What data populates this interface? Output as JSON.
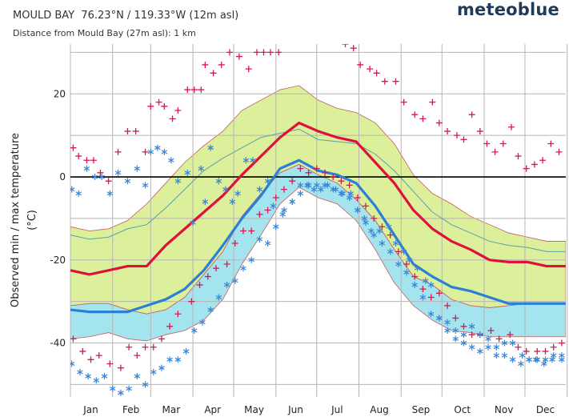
{
  "header": {
    "station": "MOULD BAY",
    "coords": "76.23°N / 119.33°W (12m asl)",
    "distance": "Distance from Mould Bay (27m asl):  1 km",
    "brand": "meteoblue"
  },
  "colors": {
    "max_line": "#e0103c",
    "min_line": "#2a7fd8",
    "max_band": "#dcef9a",
    "min_band": "#a4e4ef",
    "max_marker": "#d81850",
    "min_marker": "#3a86d6",
    "zero_line": "#000000",
    "grid": "#b5b5b5"
  },
  "chart_data": {
    "type": "line",
    "ylabel": "Observed min / max temperature (°C)",
    "ylabel_lines": [
      "Observed min / max temperature",
      "(°C)"
    ],
    "ylim": [
      -53,
      32
    ],
    "yticks": [
      20,
      0,
      -20,
      -40
    ],
    "months": [
      "Jan",
      "Feb",
      "Mar",
      "Apr",
      "May",
      "Jun",
      "Jul",
      "Aug",
      "Sep",
      "Oct",
      "Nov",
      "Dec"
    ],
    "x_days": [
      1,
      15,
      29,
      43,
      57,
      71,
      85,
      99,
      113,
      127,
      141,
      155,
      169,
      183,
      197,
      211,
      225,
      239,
      253,
      267,
      281,
      295,
      309,
      323,
      337,
      351,
      365
    ],
    "grid": true,
    "series": [
      {
        "name": "max",
        "kind": "line",
        "values": [
          -22.5,
          -23.5,
          -22.5,
          -21.5,
          -21.5,
          -16.5,
          -12.5,
          -8.5,
          -4.5,
          0.5,
          5.0,
          9.5,
          13.0,
          11.0,
          9.5,
          8.5,
          3.5,
          -1.5,
          -8.0,
          -12.5,
          -15.5,
          -17.5,
          -20.0,
          -20.5,
          -20.5,
          -21.5,
          -21.5
        ]
      },
      {
        "name": "min",
        "kind": "line",
        "values": [
          -32.0,
          -32.5,
          -32.5,
          -32.5,
          -31.0,
          -29.5,
          -27.0,
          -22.5,
          -16.5,
          -10.0,
          -4.5,
          2.0,
          4.0,
          1.5,
          0.5,
          -1.5,
          -7.0,
          -14.0,
          -21.0,
          -24.0,
          -26.5,
          -27.5,
          -29.0,
          -30.5,
          -30.5,
          -30.5,
          -30.5
        ]
      },
      {
        "name": "max_band",
        "kind": "band",
        "upper": [
          -12.0,
          -13.0,
          -12.5,
          -10.5,
          -6.5,
          -1.5,
          3.5,
          7.5,
          11.0,
          16.0,
          18.5,
          21.0,
          22.0,
          18.5,
          16.5,
          15.5,
          13.0,
          8.0,
          0.5,
          -4.0,
          -6.5,
          -9.5,
          -11.5,
          -13.5,
          -14.5,
          -15.5,
          -15.5
        ],
        "lower": [
          -31.0,
          -30.5,
          -30.5,
          -32.0,
          -33.0,
          -32.0,
          -29.0,
          -23.5,
          -18.0,
          -9.5,
          -4.0,
          1.0,
          3.0,
          0.5,
          -1.5,
          -5.5,
          -10.5,
          -17.5,
          -24.0,
          -26.0,
          -29.5,
          -31.0,
          -31.5,
          -31.0,
          -30.5,
          -30.5,
          -30.5
        ]
      },
      {
        "name": "min_band",
        "kind": "band",
        "upper": [
          -31.0,
          -30.5,
          -30.5,
          -32.0,
          -33.0,
          -32.0,
          -29.0,
          -23.5,
          -18.0,
          -9.5,
          -4.0,
          1.0,
          3.0,
          0.5,
          -1.5,
          -5.5,
          -10.5,
          -17.5,
          -24.0,
          -26.0,
          -29.5,
          -31.0,
          -31.5,
          -31.0,
          -30.5,
          -30.5,
          -30.5
        ],
        "lower": [
          -39.0,
          -38.5,
          -37.5,
          -39.0,
          -39.5,
          -38.0,
          -37.0,
          -34.5,
          -29.5,
          -21.0,
          -14.0,
          -6.5,
          -2.5,
          -5.0,
          -6.5,
          -10.5,
          -17.5,
          -25.5,
          -31.0,
          -34.5,
          -37.0,
          -37.5,
          -38.5,
          -38.5,
          -38.5,
          -38.5,
          -38.5
        ]
      },
      {
        "name": "max_mean",
        "kind": "thin-line",
        "values": [
          -14.0,
          -15.0,
          -14.5,
          -12.5,
          -11.5,
          -7.5,
          -3.0,
          1.5,
          4.5,
          7.0,
          9.5,
          10.5,
          11.5,
          9.0,
          8.5,
          8.0,
          5.5,
          1.5,
          -3.5,
          -8.5,
          -11.5,
          -13.5,
          -15.5,
          -16.5,
          -17.0,
          -18.0,
          -18.0
        ]
      },
      {
        "name": "max_record",
        "kind": "plus",
        "points": [
          [
            3,
            7
          ],
          [
            7,
            5
          ],
          [
            13,
            4
          ],
          [
            18,
            4
          ],
          [
            23,
            1
          ],
          [
            29,
            -1
          ],
          [
            36,
            6
          ],
          [
            43,
            11
          ],
          [
            49,
            11
          ],
          [
            56,
            6
          ],
          [
            60,
            17
          ],
          [
            66,
            18
          ],
          [
            70,
            17
          ],
          [
            76,
            14
          ],
          [
            80,
            16
          ],
          [
            87,
            21
          ],
          [
            92,
            21
          ],
          [
            97,
            21
          ],
          [
            100,
            27
          ],
          [
            106,
            25
          ],
          [
            112,
            27
          ],
          [
            118,
            30
          ],
          [
            125,
            29
          ],
          [
            132,
            26
          ],
          [
            138,
            30
          ],
          [
            143,
            30
          ],
          [
            148,
            30
          ],
          [
            154,
            30
          ],
          [
            160,
            34
          ],
          [
            166,
            34
          ],
          [
            172,
            34
          ],
          [
            179,
            34
          ],
          [
            185,
            33
          ],
          [
            191,
            33
          ],
          [
            197,
            33
          ],
          [
            203,
            32
          ],
          [
            209,
            31
          ],
          [
            214,
            27
          ],
          [
            221,
            26
          ],
          [
            226,
            25
          ],
          [
            232,
            23
          ],
          [
            240,
            23
          ],
          [
            246,
            18
          ],
          [
            254,
            15
          ],
          [
            260,
            14
          ],
          [
            267,
            18
          ],
          [
            272,
            13
          ],
          [
            278,
            11
          ],
          [
            285,
            10
          ],
          [
            290,
            9
          ],
          [
            296,
            15
          ],
          [
            302,
            11
          ],
          [
            307,
            8
          ],
          [
            313,
            6
          ],
          [
            319,
            8
          ],
          [
            325,
            12
          ],
          [
            330,
            5
          ],
          [
            336,
            2
          ],
          [
            342,
            3
          ],
          [
            348,
            4
          ],
          [
            354,
            8
          ],
          [
            360,
            6
          ]
        ]
      },
      {
        "name": "min_record",
        "kind": "star",
        "points": [
          [
            2,
            -3
          ],
          [
            7,
            -4
          ],
          [
            13,
            2
          ],
          [
            19,
            0
          ],
          [
            24,
            0
          ],
          [
            30,
            -4
          ],
          [
            36,
            1
          ],
          [
            43,
            -1
          ],
          [
            50,
            2
          ],
          [
            56,
            -2
          ],
          [
            60,
            6
          ],
          [
            65,
            7
          ],
          [
            70,
            6
          ],
          [
            75,
            4
          ],
          [
            80,
            -1
          ],
          [
            87,
            1
          ],
          [
            91,
            -11
          ],
          [
            97,
            2
          ],
          [
            100,
            -6
          ],
          [
            104,
            7
          ],
          [
            110,
            -1
          ],
          [
            115,
            -3
          ],
          [
            120,
            -6
          ],
          [
            124,
            -4
          ],
          [
            130,
            4
          ],
          [
            135,
            4
          ],
          [
            140,
            -3
          ],
          [
            146,
            -1
          ],
          [
            150,
            -7
          ],
          [
            157,
            -9
          ],
          [
            164,
            -6
          ],
          [
            170,
            -2
          ],
          [
            175,
            -2
          ],
          [
            180,
            -3
          ],
          [
            185,
            -3
          ],
          [
            190,
            -2
          ],
          [
            196,
            -3
          ],
          [
            201,
            -4
          ],
          [
            207,
            -4
          ],
          [
            212,
            -8
          ],
          [
            217,
            -10
          ],
          [
            222,
            -13
          ],
          [
            228,
            -13
          ],
          [
            235,
            -12
          ],
          [
            240,
            -16
          ],
          [
            246,
            -18
          ],
          [
            250,
            -20
          ],
          [
            256,
            -22
          ],
          [
            262,
            -25
          ],
          [
            266,
            -26
          ],
          [
            272,
            -34
          ],
          [
            278,
            -35
          ],
          [
            284,
            -37
          ],
          [
            290,
            -38
          ],
          [
            296,
            -36
          ],
          [
            302,
            -38
          ],
          [
            308,
            -39
          ],
          [
            314,
            -41
          ],
          [
            320,
            -40
          ],
          [
            326,
            -40
          ],
          [
            333,
            -43
          ],
          [
            338,
            -44
          ],
          [
            343,
            -44
          ],
          [
            349,
            -45
          ],
          [
            355,
            -44
          ],
          [
            362,
            -43
          ]
        ]
      },
      {
        "name": "min_max_marker",
        "kind": "plus",
        "points": [
          [
            3,
            -39
          ],
          [
            10,
            -42
          ],
          [
            16,
            -44
          ],
          [
            22,
            -43
          ],
          [
            30,
            -45
          ],
          [
            38,
            -46
          ],
          [
            44,
            -41
          ],
          [
            50,
            -43
          ],
          [
            56,
            -41
          ],
          [
            62,
            -41
          ],
          [
            68,
            -39
          ],
          [
            74,
            -36
          ],
          [
            80,
            -33
          ],
          [
            90,
            -30
          ],
          [
            96,
            -26
          ],
          [
            102,
            -24
          ],
          [
            108,
            -22
          ],
          [
            116,
            -21
          ],
          [
            122,
            -16
          ],
          [
            128,
            -13
          ],
          [
            134,
            -13
          ],
          [
            140,
            -9
          ],
          [
            146,
            -8
          ],
          [
            152,
            -5
          ],
          [
            158,
            -3
          ],
          [
            164,
            -1
          ],
          [
            170,
            2
          ],
          [
            176,
            1
          ],
          [
            182,
            2
          ],
          [
            188,
            1
          ],
          [
            194,
            0
          ],
          [
            200,
            -1
          ],
          [
            206,
            -2
          ],
          [
            212,
            -5
          ],
          [
            218,
            -7
          ],
          [
            224,
            -10
          ],
          [
            230,
            -12
          ],
          [
            236,
            -14
          ],
          [
            242,
            -18
          ],
          [
            248,
            -21
          ],
          [
            254,
            -24
          ],
          [
            260,
            -27
          ],
          [
            266,
            -29
          ],
          [
            272,
            -28
          ],
          [
            278,
            -31
          ],
          [
            284,
            -34
          ],
          [
            290,
            -36
          ],
          [
            296,
            -38
          ],
          [
            302,
            -38
          ],
          [
            310,
            -37
          ],
          [
            316,
            -39
          ],
          [
            324,
            -38
          ],
          [
            330,
            -41
          ],
          [
            336,
            -42
          ],
          [
            344,
            -42
          ],
          [
            350,
            -42
          ],
          [
            356,
            -41
          ],
          [
            362,
            -40
          ]
        ]
      },
      {
        "name": "min_min_marker",
        "kind": "star",
        "points": [
          [
            2,
            -45
          ],
          [
            8,
            -47
          ],
          [
            14,
            -48
          ],
          [
            20,
            -49
          ],
          [
            26,
            -48
          ],
          [
            32,
            -51
          ],
          [
            38,
            -52
          ],
          [
            44,
            -51
          ],
          [
            50,
            -48
          ],
          [
            56,
            -50
          ],
          [
            62,
            -47
          ],
          [
            68,
            -46
          ],
          [
            74,
            -44
          ],
          [
            80,
            -44
          ],
          [
            86,
            -42
          ],
          [
            92,
            -37
          ],
          [
            98,
            -35
          ],
          [
            104,
            -32
          ],
          [
            110,
            -29
          ],
          [
            116,
            -26
          ],
          [
            122,
            -25
          ],
          [
            128,
            -22
          ],
          [
            134,
            -20
          ],
          [
            140,
            -15
          ],
          [
            146,
            -16
          ],
          [
            152,
            -12
          ],
          [
            158,
            -8
          ],
          [
            164,
            -6
          ],
          [
            170,
            -4
          ],
          [
            176,
            -2
          ],
          [
            182,
            -2
          ],
          [
            188,
            -2
          ],
          [
            194,
            -3
          ],
          [
            200,
            -4
          ],
          [
            206,
            -5
          ],
          [
            212,
            -8
          ],
          [
            218,
            -11
          ],
          [
            224,
            -14
          ],
          [
            230,
            -16
          ],
          [
            236,
            -18
          ],
          [
            242,
            -21
          ],
          [
            248,
            -23
          ],
          [
            254,
            -26
          ],
          [
            260,
            -29
          ],
          [
            266,
            -33
          ],
          [
            272,
            -34
          ],
          [
            278,
            -37
          ],
          [
            284,
            -39
          ],
          [
            290,
            -40
          ],
          [
            296,
            -41
          ],
          [
            302,
            -42
          ],
          [
            308,
            -41
          ],
          [
            314,
            -43
          ],
          [
            320,
            -43
          ],
          [
            326,
            -44
          ],
          [
            332,
            -45
          ],
          [
            338,
            -44
          ],
          [
            344,
            -44
          ],
          [
            350,
            -44
          ],
          [
            356,
            -43
          ],
          [
            362,
            -44
          ]
        ]
      }
    ]
  }
}
